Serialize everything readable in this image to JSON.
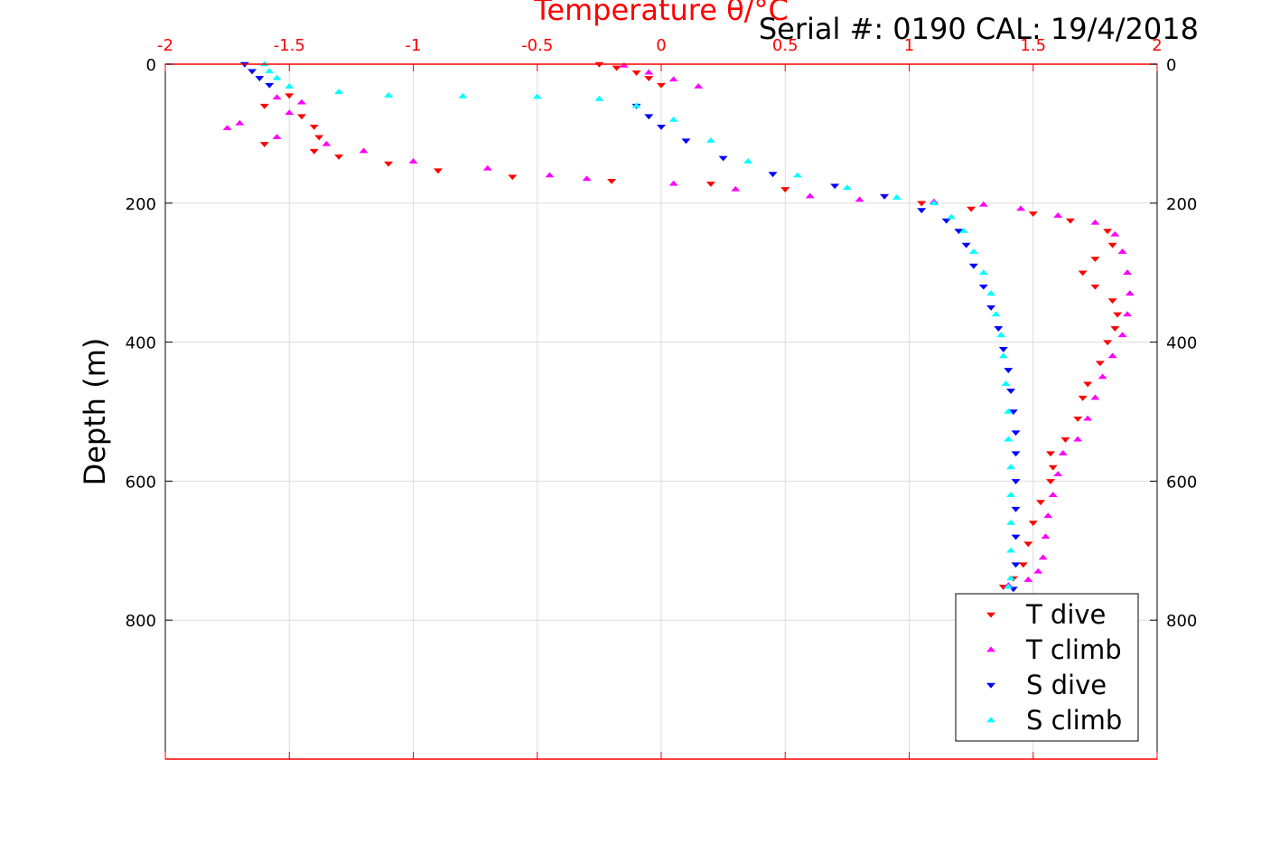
{
  "chart_data": {
    "type": "scatter",
    "serial_label": "Serial #: 0190  CAL: 19/4/2018",
    "x_axis": {
      "label": "Temperature θ/°C",
      "position": "top",
      "range": [
        -2,
        2
      ],
      "ticks": [
        -2,
        -1.5,
        -1,
        -0.5,
        0,
        0.5,
        1,
        1.5,
        2
      ],
      "tick_labels": [
        "-2",
        "-1.5",
        "-1",
        "-0.5",
        "0",
        "0.5",
        "1",
        "1.5",
        "2"
      ],
      "color": "#ff0000"
    },
    "y_axis": {
      "label": "Depth (m)",
      "range": [
        0,
        1000
      ],
      "reversed": true,
      "ticks": [
        0,
        200,
        400,
        600,
        800
      ],
      "tick_labels": [
        "0",
        "200",
        "400",
        "600",
        "800"
      ],
      "right_ticks_mirrored": true
    },
    "grid": true,
    "legend": {
      "placement": "bottom-right"
    },
    "series": [
      {
        "name": "T dive",
        "marker": "triangle-down",
        "color": "#ff0000",
        "points": [
          [
            -0.25,
            0
          ],
          [
            -0.18,
            5
          ],
          [
            -0.1,
            12
          ],
          [
            -0.05,
            20
          ],
          [
            0.0,
            30
          ],
          [
            -1.5,
            45
          ],
          [
            -1.6,
            60
          ],
          [
            -1.45,
            75
          ],
          [
            -1.4,
            90
          ],
          [
            -1.38,
            105
          ],
          [
            -1.6,
            115
          ],
          [
            -1.4,
            125
          ],
          [
            -1.3,
            133
          ],
          [
            -1.1,
            143
          ],
          [
            -0.9,
            153
          ],
          [
            -0.6,
            162
          ],
          [
            -0.2,
            168
          ],
          [
            0.2,
            172
          ],
          [
            0.5,
            180
          ],
          [
            0.9,
            190
          ],
          [
            1.05,
            200
          ],
          [
            1.25,
            208
          ],
          [
            1.5,
            215
          ],
          [
            1.65,
            225
          ],
          [
            1.8,
            240
          ],
          [
            1.82,
            260
          ],
          [
            1.75,
            280
          ],
          [
            1.7,
            300
          ],
          [
            1.75,
            320
          ],
          [
            1.82,
            340
          ],
          [
            1.84,
            360
          ],
          [
            1.83,
            380
          ],
          [
            1.8,
            400
          ],
          [
            1.77,
            430
          ],
          [
            1.72,
            460
          ],
          [
            1.7,
            480
          ],
          [
            1.68,
            510
          ],
          [
            1.63,
            540
          ],
          [
            1.57,
            560
          ],
          [
            1.58,
            580
          ],
          [
            1.57,
            600
          ],
          [
            1.53,
            630
          ],
          [
            1.5,
            660
          ],
          [
            1.48,
            690
          ],
          [
            1.46,
            720
          ],
          [
            1.42,
            740
          ],
          [
            1.38,
            752
          ]
        ]
      },
      {
        "name": "T climb",
        "marker": "triangle-up",
        "color": "#ff00ff",
        "points": [
          [
            0.15,
            32
          ],
          [
            0.05,
            22
          ],
          [
            -0.05,
            12
          ],
          [
            -0.15,
            2
          ],
          [
            -1.55,
            48
          ],
          [
            -1.45,
            55
          ],
          [
            -1.5,
            70
          ],
          [
            -1.7,
            85
          ],
          [
            -1.75,
            92
          ],
          [
            -1.55,
            105
          ],
          [
            -1.35,
            115
          ],
          [
            -1.2,
            125
          ],
          [
            -1.0,
            140
          ],
          [
            -0.7,
            150
          ],
          [
            -0.45,
            160
          ],
          [
            -0.3,
            165
          ],
          [
            0.05,
            172
          ],
          [
            0.3,
            180
          ],
          [
            0.6,
            190
          ],
          [
            0.8,
            195
          ],
          [
            1.1,
            198
          ],
          [
            1.3,
            202
          ],
          [
            1.45,
            208
          ],
          [
            1.6,
            218
          ],
          [
            1.75,
            228
          ],
          [
            1.83,
            245
          ],
          [
            1.86,
            270
          ],
          [
            1.88,
            300
          ],
          [
            1.89,
            330
          ],
          [
            1.88,
            360
          ],
          [
            1.86,
            390
          ],
          [
            1.82,
            420
          ],
          [
            1.78,
            450
          ],
          [
            1.75,
            480
          ],
          [
            1.72,
            510
          ],
          [
            1.68,
            540
          ],
          [
            1.62,
            560
          ],
          [
            1.6,
            590
          ],
          [
            1.58,
            620
          ],
          [
            1.56,
            650
          ],
          [
            1.55,
            680
          ],
          [
            1.54,
            710
          ],
          [
            1.52,
            730
          ],
          [
            1.48,
            742
          ],
          [
            1.4,
            750
          ]
        ]
      },
      {
        "name": "S dive",
        "marker": "triangle-down",
        "color": "#0000ff",
        "points": [
          [
            -1.68,
            0
          ],
          [
            -1.65,
            10
          ],
          [
            -1.62,
            20
          ],
          [
            -1.58,
            30
          ],
          [
            -0.1,
            60
          ],
          [
            -0.05,
            75
          ],
          [
            0.0,
            90
          ],
          [
            0.1,
            110
          ],
          [
            0.25,
            135
          ],
          [
            0.45,
            158
          ],
          [
            0.7,
            175
          ],
          [
            0.9,
            190
          ],
          [
            1.05,
            210
          ],
          [
            1.15,
            225
          ],
          [
            1.2,
            240
          ],
          [
            1.23,
            260
          ],
          [
            1.26,
            290
          ],
          [
            1.3,
            320
          ],
          [
            1.33,
            350
          ],
          [
            1.36,
            380
          ],
          [
            1.38,
            410
          ],
          [
            1.4,
            440
          ],
          [
            1.41,
            470
          ],
          [
            1.42,
            500
          ],
          [
            1.43,
            530
          ],
          [
            1.43,
            560
          ],
          [
            1.43,
            600
          ],
          [
            1.43,
            640
          ],
          [
            1.43,
            680
          ],
          [
            1.43,
            720
          ],
          [
            1.42,
            755
          ]
        ]
      },
      {
        "name": "S climb",
        "marker": "triangle-up",
        "color": "#00ffff",
        "points": [
          [
            -1.6,
            0
          ],
          [
            -1.58,
            10
          ],
          [
            -1.55,
            20
          ],
          [
            -1.5,
            32
          ],
          [
            -1.3,
            40
          ],
          [
            -1.1,
            45
          ],
          [
            -0.8,
            46
          ],
          [
            -0.5,
            47
          ],
          [
            -0.25,
            50
          ],
          [
            -0.1,
            60
          ],
          [
            0.05,
            80
          ],
          [
            0.2,
            110
          ],
          [
            0.35,
            140
          ],
          [
            0.55,
            160
          ],
          [
            0.75,
            178
          ],
          [
            0.95,
            192
          ],
          [
            1.1,
            200
          ],
          [
            1.17,
            220
          ],
          [
            1.22,
            240
          ],
          [
            1.26,
            270
          ],
          [
            1.3,
            300
          ],
          [
            1.33,
            330
          ],
          [
            1.35,
            360
          ],
          [
            1.37,
            390
          ],
          [
            1.38,
            420
          ],
          [
            1.39,
            460
          ],
          [
            1.4,
            500
          ],
          [
            1.4,
            540
          ],
          [
            1.41,
            580
          ],
          [
            1.41,
            620
          ],
          [
            1.41,
            660
          ],
          [
            1.41,
            700
          ],
          [
            1.41,
            740
          ],
          [
            1.4,
            752
          ]
        ]
      }
    ]
  }
}
